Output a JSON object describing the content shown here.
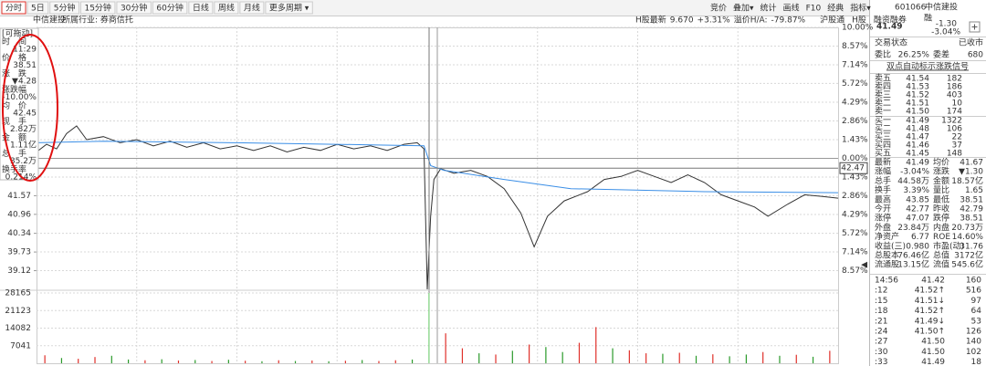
{
  "toolbar": {
    "tabs": [
      "分时",
      "5日",
      "5分钟",
      "15分钟",
      "30分钟",
      "60分钟",
      "日线",
      "周线",
      "月线",
      "更多周期 ▾"
    ],
    "tools": [
      "竞价",
      "叠加▾",
      "统计",
      "画线",
      "F10",
      "经典",
      "指标▾"
    ]
  },
  "header": {
    "name": "中信建投",
    "industry": "所属行业: 券商信托",
    "h_label": "H股最新",
    "h_price": "9.670",
    "h_pct": "+3.31%",
    "premium_label": "溢价H/A:",
    "premium": "-79.87%",
    "tags": [
      "沪股通",
      "H股",
      "融资融券"
    ]
  },
  "info_panel": {
    "drag": "[可拖动]",
    "rows": [
      {
        "label": "时　间",
        "value": "11:29",
        "color": "#222"
      },
      {
        "label": "价　格",
        "value": "38.51",
        "color": "#169c16"
      },
      {
        "label": "涨　跌",
        "value": "▼4.28",
        "color": "#169c16"
      },
      {
        "label": "涨跌幅",
        "value": "-10.00%",
        "color": "#169c16"
      },
      {
        "label": "均　价",
        "value": "42.45",
        "color": "#169c16"
      },
      {
        "label": "现　手",
        "value": "2.82万",
        "color": "#222"
      },
      {
        "label": "金　额",
        "value": "1.11亿",
        "color": "#1565c0"
      },
      {
        "label": "总　手",
        "value": "35.2万",
        "color": "#222"
      },
      {
        "label": "换手率",
        "value": "0.214%",
        "color": "#222"
      }
    ]
  },
  "chart_data": [
    {
      "type": "line",
      "xlim": [
        0,
        240
      ],
      "ylim": [
        38.51,
        47.07
      ],
      "yticks": [
        41.57,
        40.96,
        40.34,
        39.73,
        39.12
      ],
      "y2lim": [
        -10,
        10
      ],
      "y2ticks": [
        {
          "value": 10,
          "label": "10.00%"
        },
        {
          "value": 8.57,
          "label": "8.57%"
        },
        {
          "value": 7.14,
          "label": "7.14%"
        },
        {
          "value": 5.72,
          "label": "5.72%"
        },
        {
          "value": 4.29,
          "label": "4.29%"
        },
        {
          "value": 2.86,
          "label": "2.86%"
        },
        {
          "value": 1.43,
          "label": "1.43%"
        },
        {
          "value": 0,
          "label": "0.00%"
        },
        {
          "value": -1.43,
          "label": "1.43%"
        },
        {
          "value": -2.86,
          "label": "2.86%"
        },
        {
          "value": -4.29,
          "label": "4.29%"
        },
        {
          "value": -5.72,
          "label": "5.72%"
        },
        {
          "value": -7.14,
          "label": "7.14%"
        },
        {
          "value": -8.57,
          "label": "8.57%"
        }
      ],
      "cursor_price": 42.47,
      "grid": true,
      "series": [
        {
          "color": "#333333",
          "x": [
            0,
            3,
            6,
            9,
            12,
            15,
            20,
            25,
            30,
            35,
            40,
            45,
            50,
            55,
            60,
            65,
            70,
            75,
            80,
            85,
            90,
            95,
            100,
            105,
            110,
            114,
            116,
            117,
            118,
            119,
            121,
            125,
            130,
            135,
            140,
            145,
            149,
            153,
            158,
            165,
            170,
            175,
            180,
            185,
            190,
            195,
            200,
            205,
            210,
            215,
            219,
            225,
            230,
            235,
            240
          ],
          "values": [
            43.0,
            43.25,
            43.1,
            43.6,
            43.85,
            43.4,
            43.5,
            43.3,
            43.4,
            43.2,
            43.35,
            43.15,
            43.3,
            43.1,
            43.2,
            43.05,
            43.2,
            43.0,
            43.15,
            43.05,
            43.25,
            43.1,
            43.2,
            43.05,
            43.25,
            43.3,
            43.1,
            38.51,
            40.9,
            42.1,
            42.45,
            42.3,
            42.4,
            42.2,
            41.8,
            41.0,
            39.9,
            40.9,
            41.4,
            41.7,
            42.1,
            42.2,
            42.4,
            42.2,
            42.0,
            42.25,
            42.0,
            41.6,
            41.4,
            41.2,
            40.9,
            41.3,
            41.6,
            41.55,
            41.49
          ]
        },
        {
          "color": "#3a8ee6",
          "x": [
            0,
            20,
            60,
            100,
            116,
            118,
            122,
            140,
            160,
            200,
            240
          ],
          "values": [
            43.3,
            43.35,
            43.3,
            43.23,
            43.2,
            42.55,
            42.4,
            42.1,
            41.8,
            41.7,
            41.67
          ]
        }
      ]
    },
    {
      "type": "bar",
      "ylim": [
        0,
        28165
      ],
      "yticks": [
        28165,
        21123,
        14082,
        7041
      ],
      "values": [
        3200,
        2100,
        1800,
        2500,
        3000,
        1500,
        1200,
        1600,
        1100,
        1300,
        900,
        1400,
        1000,
        800,
        1200,
        900,
        1100,
        800,
        1000,
        1300,
        900,
        1200,
        1500,
        28165,
        12000,
        6000,
        4000,
        3500,
        5000,
        7500,
        6500,
        4500,
        8200,
        14500,
        6000,
        5200,
        4000,
        3800,
        4200,
        3000,
        3600,
        2800,
        3500,
        4500,
        3000,
        3400,
        2600,
        5000
      ],
      "colors": [
        "#e0302a",
        "#2a9a2a",
        "#e0302a",
        "#e0302a",
        "#2a9a2a",
        "#2a9a2a",
        "#e0302a",
        "#2a9a2a",
        "#e0302a",
        "#2a9a2a",
        "#e0302a",
        "#2a9a2a",
        "#e0302a",
        "#2a9a2a",
        "#e0302a",
        "#2a9a2a",
        "#e0302a",
        "#2a9a2a",
        "#e0302a",
        "#2a9a2a",
        "#e0302a",
        "#e0302a",
        "#2a9a2a",
        "#7fd47f",
        "#e0302a",
        "#e0302a",
        "#2a9a2a",
        "#e0302a",
        "#2a9a2a",
        "#e0302a",
        "#2a9a2a",
        "#2a9a2a",
        "#e0302a",
        "#e0302a",
        "#2a9a2a",
        "#e0302a",
        "#e0302a",
        "#2a9a2a",
        "#e0302a",
        "#2a9a2a",
        "#e0302a",
        "#2a9a2a",
        "#2a9a2a",
        "#e0302a",
        "#2a9a2a",
        "#e0302a",
        "#2a9a2a",
        "#e0302a"
      ]
    }
  ],
  "quote": {
    "code": "601066",
    "name": "中信建投",
    "tag": "融",
    "price": "41.49",
    "change": "-1.30",
    "pct": "-3.04%",
    "status_label": "交易状态",
    "status": "已收市",
    "wb_label": "委比",
    "wb": "26.25%",
    "wc_label": "委差",
    "wc": "680",
    "signal": "双点自动标示涨跌信号",
    "sells": [
      {
        "label": "卖五",
        "price": "41.54",
        "vol": "182"
      },
      {
        "label": "卖四",
        "price": "41.53",
        "vol": "186"
      },
      {
        "label": "卖三",
        "price": "41.52",
        "vol": "403"
      },
      {
        "label": "卖二",
        "price": "41.51",
        "vol": "10"
      },
      {
        "label": "卖一",
        "price": "41.50",
        "vol": "174"
      }
    ],
    "buys": [
      {
        "label": "买一",
        "price": "41.49",
        "vol": "1322"
      },
      {
        "label": "买二",
        "price": "41.48",
        "vol": "106"
      },
      {
        "label": "买三",
        "price": "41.47",
        "vol": "22"
      },
      {
        "label": "买四",
        "price": "41.46",
        "vol": "37"
      },
      {
        "label": "买五",
        "price": "41.45",
        "vol": "148"
      }
    ],
    "stats": [
      [
        "最新",
        "41.49",
        "#169c16",
        "均价",
        "41.67",
        "#169c16"
      ],
      [
        "涨幅",
        "-3.04%",
        "#169c16",
        "涨跌",
        "▼1.30",
        "#169c16"
      ],
      [
        "总手",
        "44.58万",
        "#222",
        "金额",
        "18.57亿",
        "#1565c0"
      ],
      [
        "换手",
        "3.39%",
        "#222",
        "量比",
        "1.65",
        "#1565c0"
      ],
      [
        "最高",
        "43.85",
        "#e0302a",
        "最低",
        "38.51",
        "#169c16"
      ],
      [
        "今开",
        "42.77",
        "#169c16",
        "昨收",
        "42.79",
        "#222"
      ],
      [
        "涨停",
        "47.07",
        "#e0302a",
        "跌停",
        "38.51",
        "#169c16"
      ],
      [
        "外盘",
        "23.84万",
        "#e0302a",
        "内盘",
        "20.73万",
        "#169c16"
      ],
      [
        "净资产",
        "6.77",
        "#222",
        "ROE",
        "14.60%",
        "#222"
      ],
      [
        "收益(三)",
        "0.980",
        "#222",
        "市盈(动)",
        "31.76",
        "#222"
      ],
      [
        "总股本",
        "76.46亿",
        "#222",
        "总值",
        "3172亿",
        "#222"
      ],
      [
        "流通股",
        "13.15亿",
        "#222",
        "流值",
        "545.6亿",
        "#222"
      ]
    ],
    "ticks": [
      {
        "time": "14:56",
        "price": "41.42",
        "vol": "160",
        "color": "#169c16"
      },
      {
        "time": ":12",
        "price": "41.52↑",
        "vol": "516",
        "color": "#e0302a"
      },
      {
        "time": ":15",
        "price": "41.51↓",
        "vol": "97",
        "color": "#169c16"
      },
      {
        "time": ":18",
        "price": "41.52↑",
        "vol": "64",
        "color": "#e0302a"
      },
      {
        "time": ":21",
        "price": "41.49↓",
        "vol": "53",
        "color": "#169c16"
      },
      {
        "time": ":24",
        "price": "41.50↑",
        "vol": "126",
        "color": "#e0302a"
      },
      {
        "time": ":27",
        "price": "41.50",
        "vol": "140",
        "color": "#169c16"
      },
      {
        "time": ":30",
        "price": "41.50",
        "vol": "102",
        "color": "#169c16"
      },
      {
        "time": ":33",
        "price": "41.49",
        "vol": "18",
        "color": "#169c16"
      }
    ]
  }
}
